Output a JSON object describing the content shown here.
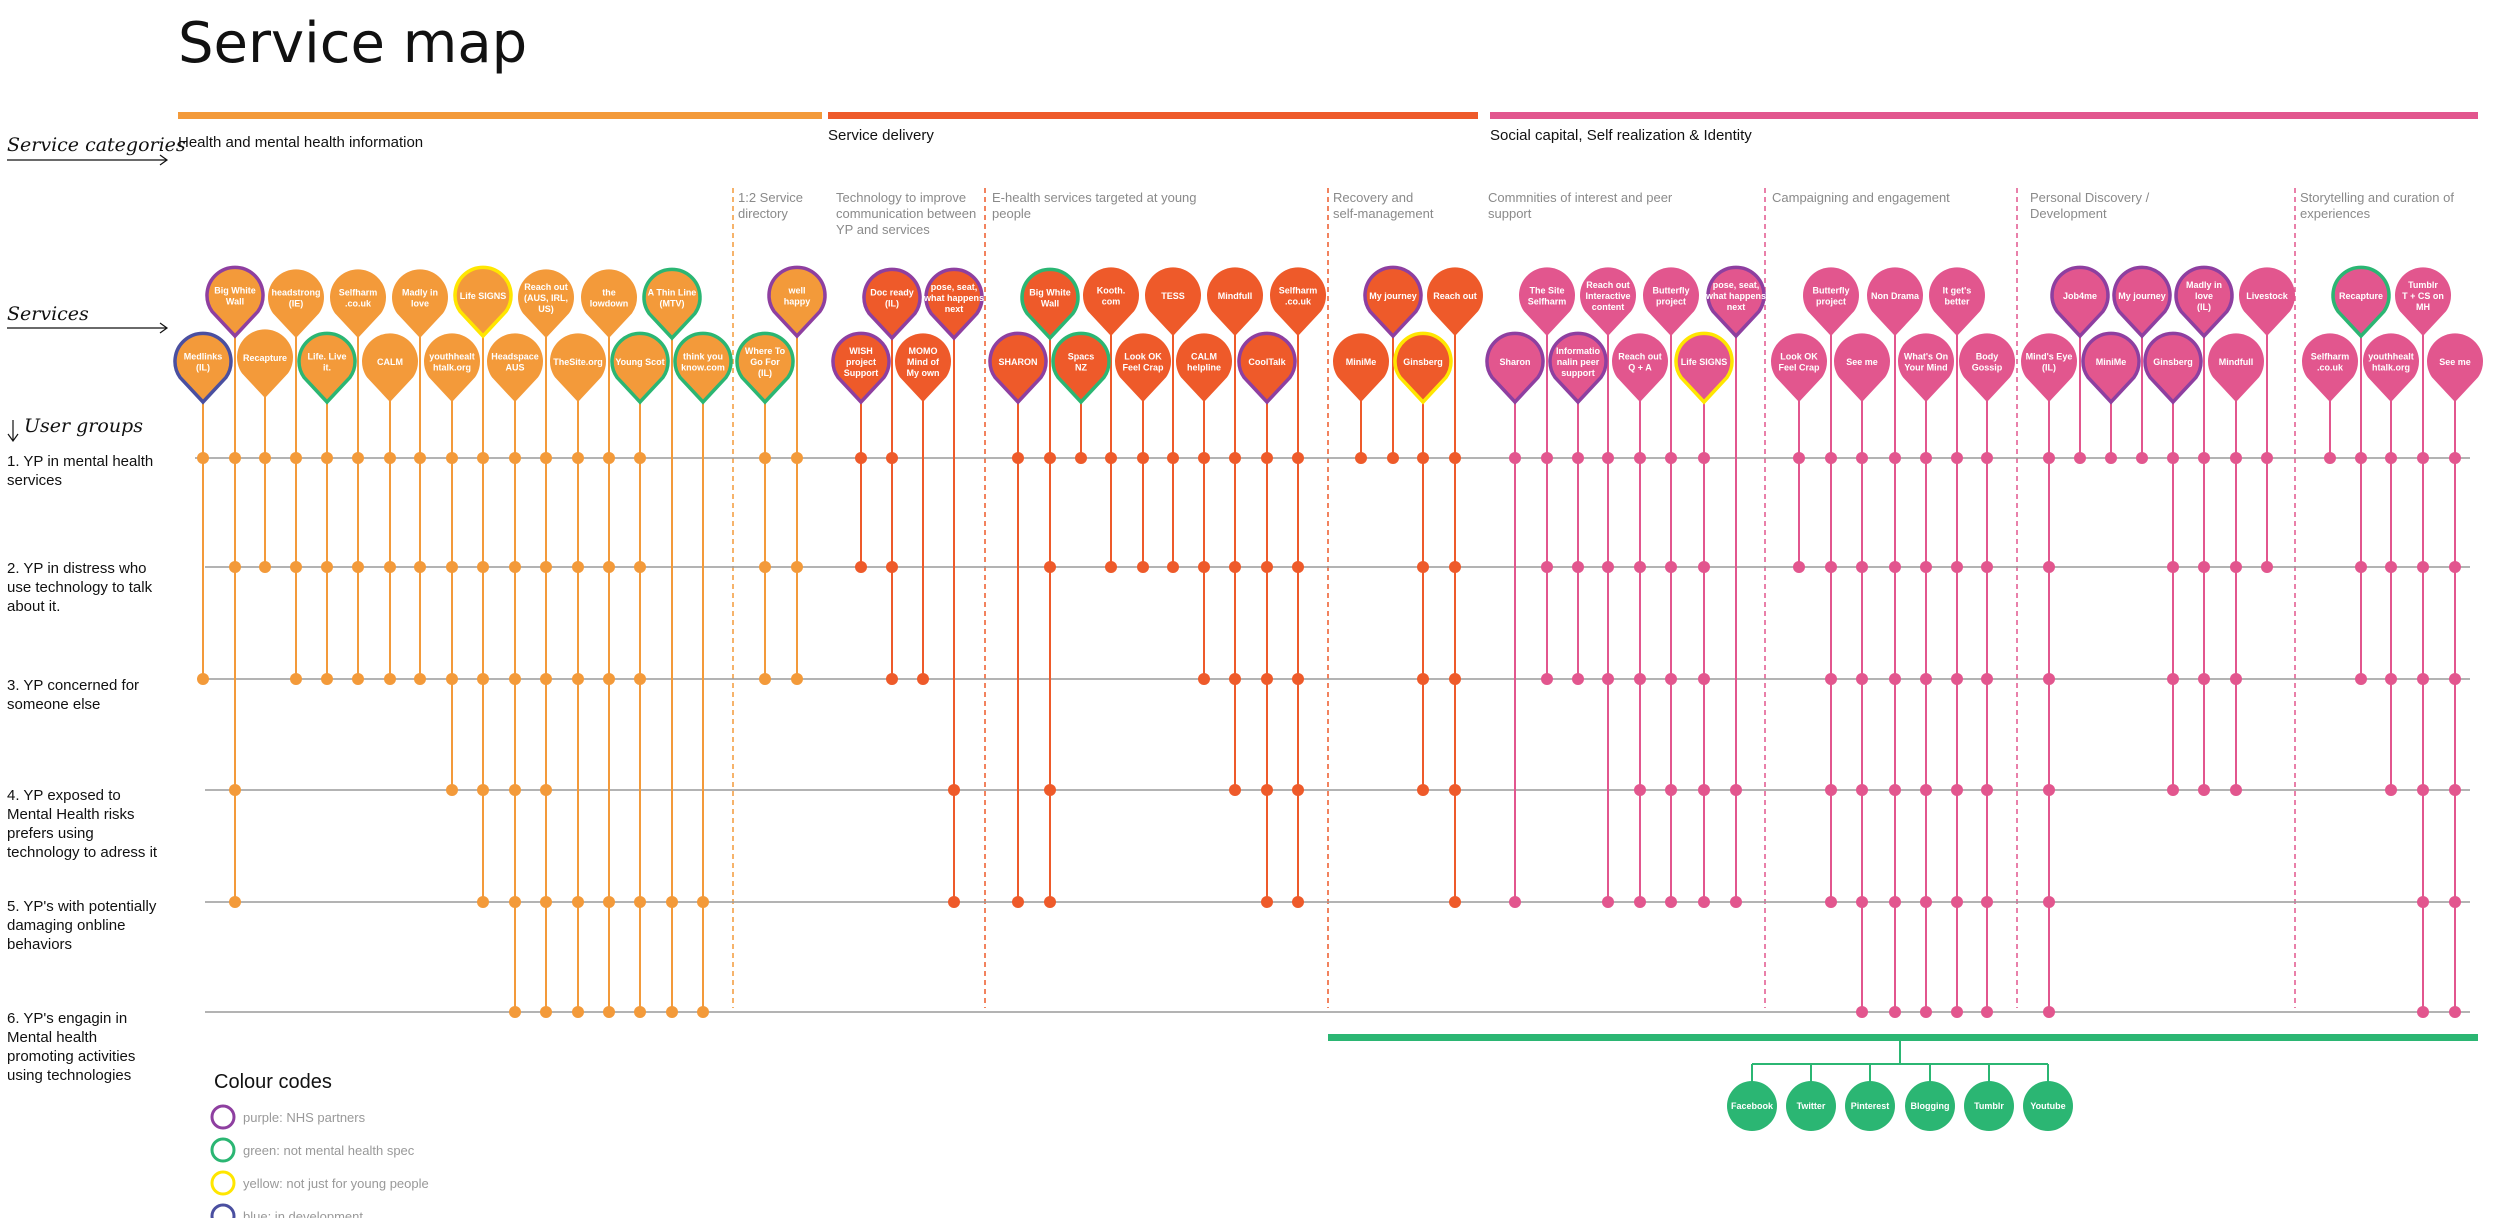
{
  "title": "Service map",
  "side_labels": {
    "categories": "Service categories",
    "services": "Services",
    "user_groups": "User groups"
  },
  "colors": {
    "info": "#F39A3A",
    "delivery": "#EE5A2A",
    "social": "#E2568E",
    "nhs": "#8E3FA0",
    "green": "#2BB673",
    "yellow": "#FFE600",
    "blue": "#4A4FA0",
    "divider": "#EE5A2A",
    "row_line": "#9a9a9a"
  },
  "categories": [
    {
      "label": "Health and mental health information",
      "color": "info"
    },
    {
      "label": "Service delivery",
      "color": "delivery"
    },
    {
      "label": "Social capital, Self realization & Identity",
      "color": "social"
    }
  ],
  "subcategories": [
    "1:2 Service directory",
    "Technology to improve communication between YP and services",
    "E-health services targeted at young people",
    "Recovery and self-management",
    "Commnities of interest and peer support",
    "Campaigning and engagement",
    "Personal Discovery / Development",
    "Storytelling and curation of experiences"
  ],
  "user_groups": [
    {
      "label": [
        "1. YP in mental health",
        "services"
      ]
    },
    {
      "label": [
        "2. YP in distress who",
        "use technology to talk",
        "about it."
      ]
    },
    {
      "label": [
        "3. YP concerned for",
        "someone else"
      ]
    },
    {
      "label": [
        "4. YP exposed to",
        "Mental Health risks",
        "prefers using",
        "technology to adress it"
      ]
    },
    {
      "label": [
        "5. YP's with potentially",
        "damaging onbline",
        "behaviors"
      ]
    },
    {
      "label": [
        "6. YP's engagin in",
        "Mental health",
        "promoting activities",
        "using technologies"
      ]
    }
  ],
  "services": [
    {
      "label": [
        "Medlinks",
        "(IL)"
      ],
      "color": "info",
      "ring": "blue",
      "rows": [
        1,
        3
      ]
    },
    {
      "label": [
        "Big White",
        "Wall"
      ],
      "color": "info",
      "ring": "nhs",
      "rows": [
        1,
        2,
        4,
        5
      ]
    },
    {
      "label": [
        "Recapture"
      ],
      "color": "info",
      "ring": "",
      "rows": [
        1,
        2
      ]
    },
    {
      "label": [
        "headstrong",
        "(IE)"
      ],
      "color": "info",
      "ring": "",
      "rows": [
        1,
        2,
        3
      ]
    },
    {
      "label": [
        "Life. Live",
        "it."
      ],
      "color": "info",
      "ring": "green",
      "rows": [
        1,
        2,
        3
      ]
    },
    {
      "label": [
        "Selfharm",
        ".co.uk"
      ],
      "color": "info",
      "ring": "",
      "rows": [
        1,
        2,
        3
      ]
    },
    {
      "label": [
        "CALM"
      ],
      "color": "info",
      "ring": "",
      "rows": [
        1,
        2,
        3
      ]
    },
    {
      "label": [
        "Madly in",
        "love"
      ],
      "color": "info",
      "ring": "",
      "rows": [
        1,
        2,
        3
      ]
    },
    {
      "label": [
        "youthhealt",
        "htalk.org"
      ],
      "color": "info",
      "ring": "",
      "rows": [
        1,
        2,
        3,
        4
      ]
    },
    {
      "label": [
        "Life SIGNS"
      ],
      "color": "info",
      "ring": "yellow",
      "rows": [
        1,
        2,
        3,
        4,
        5
      ]
    },
    {
      "label": [
        "Headspace",
        "AUS"
      ],
      "color": "info",
      "ring": "",
      "rows": [
        1,
        2,
        3,
        4,
        5,
        6
      ]
    },
    {
      "label": [
        "Reach out",
        "(AUS, IRL,",
        "US)"
      ],
      "color": "info",
      "ring": "",
      "rows": [
        1,
        2,
        3,
        4,
        5,
        6
      ]
    },
    {
      "label": [
        "TheSite.org"
      ],
      "color": "info",
      "ring": "",
      "rows": [
        1,
        2,
        3,
        5,
        6
      ]
    },
    {
      "label": [
        "the",
        "lowdown"
      ],
      "color": "info",
      "ring": "",
      "rows": [
        1,
        2,
        3,
        5,
        6
      ]
    },
    {
      "label": [
        "Young Scot"
      ],
      "color": "info",
      "ring": "green",
      "rows": [
        1,
        2,
        3,
        5,
        6
      ]
    },
    {
      "label": [
        "A Thin Line",
        "(MTV)"
      ],
      "color": "info",
      "ring": "green",
      "rows": [
        5,
        6
      ]
    },
    {
      "label": [
        "think you",
        "know.com"
      ],
      "color": "info",
      "ring": "green",
      "rows": [
        5,
        6
      ]
    },
    {
      "label": [
        "Where To",
        "Go For",
        "(IL)"
      ],
      "color": "info",
      "ring": "green",
      "rows": [
        1,
        2,
        3
      ]
    },
    {
      "label": [
        "well",
        "happy"
      ],
      "color": "info",
      "ring": "nhs",
      "rows": [
        1,
        2,
        3
      ]
    },
    {
      "label": [
        "WISH",
        "project",
        "Support"
      ],
      "color": "delivery",
      "ring": "nhs",
      "rows": [
        1,
        2
      ]
    },
    {
      "label": [
        "Doc ready",
        "(IL)"
      ],
      "color": "delivery",
      "ring": "nhs",
      "rows": [
        1,
        2,
        3
      ]
    },
    {
      "label": [
        "MOMO",
        "Mind of",
        "My own"
      ],
      "color": "delivery",
      "ring": "",
      "rows": [
        3
      ]
    },
    {
      "label": [
        "pose, seat,",
        "what happens",
        "next"
      ],
      "color": "delivery",
      "ring": "nhs",
      "rows": [
        4,
        5
      ]
    },
    {
      "label": [
        "SHARON"
      ],
      "color": "delivery",
      "ring": "nhs",
      "rows": [
        1,
        5
      ]
    },
    {
      "label": [
        "Big White",
        "Wall"
      ],
      "color": "delivery",
      "ring": "green",
      "rows": [
        1,
        2,
        4,
        5
      ]
    },
    {
      "label": [
        "Spacs",
        "NZ"
      ],
      "color": "delivery",
      "ring": "green",
      "rows": [
        1
      ]
    },
    {
      "label": [
        "Kooth.",
        "com"
      ],
      "color": "delivery",
      "ring": "",
      "rows": [
        1,
        2
      ]
    },
    {
      "label": [
        "Look OK",
        "Feel Crap"
      ],
      "color": "delivery",
      "ring": "",
      "rows": [
        1,
        2
      ]
    },
    {
      "label": [
        "TESS"
      ],
      "color": "delivery",
      "ring": "",
      "rows": [
        1,
        2
      ]
    },
    {
      "label": [
        "CALM",
        "helpline"
      ],
      "color": "delivery",
      "ring": "",
      "rows": [
        1,
        2,
        3
      ]
    },
    {
      "label": [
        "Mindfull"
      ],
      "color": "delivery",
      "ring": "",
      "rows": [
        1,
        2,
        3,
        4
      ]
    },
    {
      "label": [
        "CoolTalk"
      ],
      "color": "delivery",
      "ring": "nhs",
      "rows": [
        1,
        2,
        3,
        4,
        5
      ]
    },
    {
      "label": [
        "Selfharm",
        ".co.uk"
      ],
      "color": "delivery",
      "ring": "",
      "rows": [
        1,
        2,
        3,
        4,
        5
      ]
    },
    {
      "label": [
        "MiniMe"
      ],
      "color": "delivery",
      "ring": "",
      "rows": [
        1
      ]
    },
    {
      "label": [
        "My journey"
      ],
      "color": "delivery",
      "ring": "nhs",
      "rows": [
        1
      ]
    },
    {
      "label": [
        "Ginsberg"
      ],
      "color": "delivery",
      "ring": "yellow",
      "rows": [
        1,
        2,
        3,
        4
      ]
    },
    {
      "label": [
        "Reach out"
      ],
      "color": "delivery",
      "ring": "",
      "rows": [
        1,
        2,
        3,
        4,
        5
      ]
    },
    {
      "label": [
        "Sharon"
      ],
      "color": "social",
      "ring": "nhs",
      "rows": [
        1,
        5
      ]
    },
    {
      "label": [
        "The Site",
        "Selfharm"
      ],
      "color": "social",
      "ring": "",
      "rows": [
        1,
        2,
        3
      ]
    },
    {
      "label": [
        "Informatio",
        "nalin peer",
        "support"
      ],
      "color": "social",
      "ring": "nhs",
      "rows": [
        1,
        2,
        3
      ]
    },
    {
      "label": [
        "Reach out",
        "Interactive",
        "content"
      ],
      "color": "social",
      "ring": "",
      "rows": [
        1,
        2,
        3,
        5
      ]
    },
    {
      "label": [
        "Reach out",
        "Q + A"
      ],
      "color": "social",
      "ring": "",
      "rows": [
        1,
        2,
        3,
        4,
        5
      ]
    },
    {
      "label": [
        "Butterfly",
        "project"
      ],
      "color": "social",
      "ring": "",
      "rows": [
        1,
        2,
        3,
        4,
        5
      ]
    },
    {
      "label": [
        "Life SIGNS"
      ],
      "color": "social",
      "ring": "yellow",
      "rows": [
        1,
        2,
        3,
        4,
        5
      ]
    },
    {
      "label": [
        "pose, seat,",
        "what happens",
        "next"
      ],
      "color": "social",
      "ring": "nhs",
      "rows": [
        4,
        5
      ]
    },
    {
      "label": [
        "Look OK",
        "Feel Crap"
      ],
      "color": "social",
      "ring": "",
      "rows": [
        1,
        2
      ]
    },
    {
      "label": [
        "Butterfly",
        "project"
      ],
      "color": "social",
      "ring": "",
      "rows": [
        1,
        2,
        3,
        4,
        5
      ]
    },
    {
      "label": [
        "See me"
      ],
      "color": "social",
      "ring": "",
      "rows": [
        1,
        2,
        3,
        4,
        5,
        6
      ]
    },
    {
      "label": [
        "Non Drama"
      ],
      "color": "social",
      "ring": "",
      "rows": [
        1,
        2,
        3,
        4,
        5,
        6
      ]
    },
    {
      "label": [
        "What's On",
        "Your Mind"
      ],
      "color": "social",
      "ring": "",
      "rows": [
        1,
        2,
        3,
        4,
        5,
        6
      ]
    },
    {
      "label": [
        "It get's",
        "better"
      ],
      "color": "social",
      "ring": "",
      "rows": [
        1,
        2,
        3,
        4,
        5,
        6
      ]
    },
    {
      "label": [
        "Body",
        "Gossip"
      ],
      "color": "social",
      "ring": "",
      "rows": [
        1,
        2,
        3,
        4,
        5,
        6
      ]
    },
    {
      "label": [
        "Mind's Eye",
        "(IL)"
      ],
      "color": "social",
      "ring": "",
      "rows": [
        1,
        2,
        3,
        4,
        5,
        6
      ]
    },
    {
      "label": [
        "Job4me"
      ],
      "color": "social",
      "ring": "nhs",
      "rows": [
        1
      ]
    },
    {
      "label": [
        "MiniMe"
      ],
      "color": "social",
      "ring": "nhs",
      "rows": [
        1
      ]
    },
    {
      "label": [
        "My journey"
      ],
      "color": "social",
      "ring": "nhs",
      "rows": [
        1
      ]
    },
    {
      "label": [
        "Ginsberg"
      ],
      "color": "social",
      "ring": "nhs",
      "rows": [
        1,
        2,
        3,
        4
      ]
    },
    {
      "label": [
        "Madly in",
        "love",
        "(IL)"
      ],
      "color": "social",
      "ring": "nhs",
      "rows": [
        1,
        2,
        3,
        4
      ]
    },
    {
      "label": [
        "Mindfull"
      ],
      "color": "social",
      "ring": "",
      "rows": [
        1,
        2,
        3,
        4
      ]
    },
    {
      "label": [
        "Livestock"
      ],
      "color": "social",
      "ring": "",
      "rows": [
        1,
        2
      ]
    },
    {
      "label": [
        "Selfharm",
        ".co.uk"
      ],
      "color": "social",
      "ring": "",
      "rows": [
        1
      ]
    },
    {
      "label": [
        "Recapture"
      ],
      "color": "social",
      "ring": "green",
      "rows": [
        1,
        2,
        3
      ]
    },
    {
      "label": [
        "youthhealt",
        "htalk.org"
      ],
      "color": "social",
      "ring": "",
      "rows": [
        1,
        2,
        3,
        4
      ]
    },
    {
      "label": [
        "Tumblr",
        "T + CS on",
        "MH"
      ],
      "color": "social",
      "ring": "",
      "rows": [
        1,
        2,
        3,
        4,
        5,
        6
      ]
    },
    {
      "label": [
        "See me"
      ],
      "color": "social",
      "ring": "",
      "rows": [
        1,
        2,
        3,
        4,
        5,
        6
      ]
    }
  ],
  "social_channels": [
    "Facebook",
    "Twitter",
    "Pinterest",
    "Blogging",
    "Tumblr",
    "Youtube"
  ],
  "legend": {
    "title": "Colour codes",
    "items": [
      {
        "color": "nhs",
        "label": "purple: NHS partners"
      },
      {
        "color": "green",
        "label": "green: not mental health spec"
      },
      {
        "color": "yellow",
        "label": "yellow: not just for young people"
      },
      {
        "color": "blue",
        "label": "blue: in development"
      }
    ]
  }
}
